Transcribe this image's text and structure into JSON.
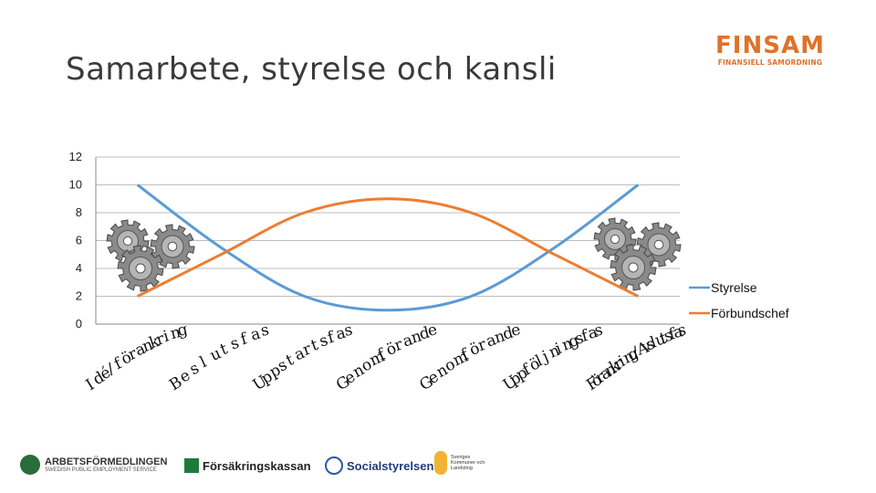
{
  "slide": {
    "title": "Samarbete, styrelse och kansli"
  },
  "brand": {
    "name": "FINSAM",
    "subtitle": "FINANSIELL SAMORDNING",
    "color": "#e0712b"
  },
  "chart_data": {
    "type": "line",
    "y_ticks": [
      "12",
      "10",
      "8",
      "6",
      "4",
      "2",
      "0"
    ],
    "ylim": [
      0,
      12
    ],
    "grid": "horizontal",
    "legend_position": "right",
    "categories": [
      "Idé/förankring",
      "Beslutsfas",
      "Uppstartsfas",
      "Genomförande",
      "Genomförande",
      "Uppföljningsfas",
      "Förankring/Avslutsfas"
    ],
    "series": [
      {
        "name": "Styrelse",
        "color": "#5b9bd5",
        "values": [
          10,
          5.5,
          2,
          1,
          2,
          5.5,
          10
        ]
      },
      {
        "name": "Förbundschef",
        "color": "#ed7d31",
        "values": [
          2,
          5,
          8,
          9,
          8,
          5,
          2
        ]
      }
    ],
    "decorations": {
      "gear_icon_color": "#8a8a8a"
    }
  },
  "partners": {
    "arbetsformedlingen": {
      "name": "ARBETSFÖRMEDLINGEN",
      "sub": "SWEDISH PUBLIC EMPLOYMENT SERVICE"
    },
    "forsakringskassan": {
      "name": "Försäkringskassan"
    },
    "socialstyrelsen": {
      "name": "Socialstyrelsen"
    },
    "skl": {
      "name": "Sveriges Kommuner och Landsting"
    }
  }
}
